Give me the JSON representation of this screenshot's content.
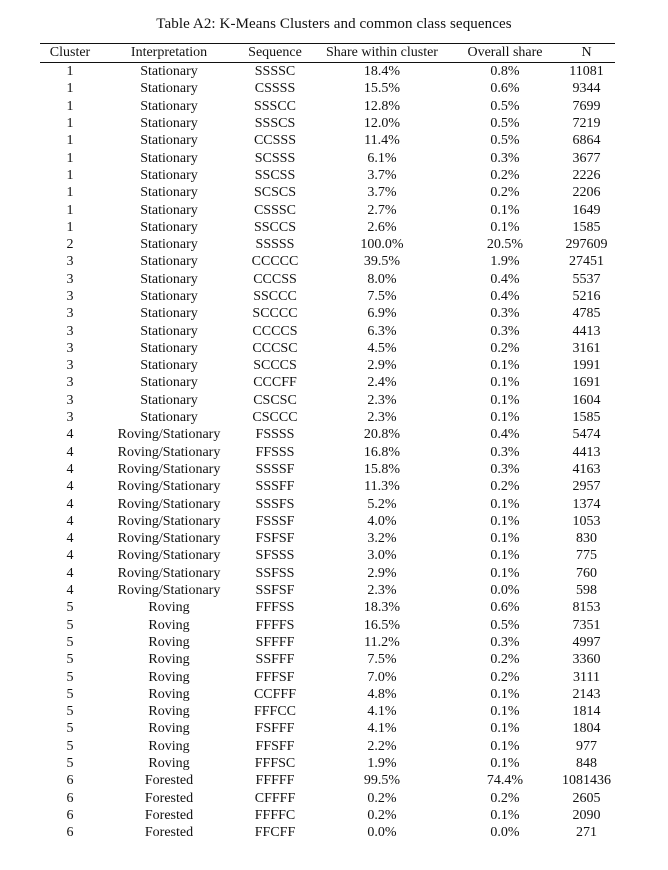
{
  "caption": "Table A2: K-Means Clusters and common class sequences",
  "columns": [
    "Cluster",
    "Interpretation",
    "Sequence",
    "Share within cluster",
    "Overall share",
    "N"
  ],
  "rows": [
    [
      "1",
      "Stationary",
      "SSSSC",
      "18.4%",
      "0.8%",
      "11081"
    ],
    [
      "1",
      "Stationary",
      "CSSSS",
      "15.5%",
      "0.6%",
      "9344"
    ],
    [
      "1",
      "Stationary",
      "SSSCC",
      "12.8%",
      "0.5%",
      "7699"
    ],
    [
      "1",
      "Stationary",
      "SSSCS",
      "12.0%",
      "0.5%",
      "7219"
    ],
    [
      "1",
      "Stationary",
      "CCSSS",
      "11.4%",
      "0.5%",
      "6864"
    ],
    [
      "1",
      "Stationary",
      "SCSSS",
      "6.1%",
      "0.3%",
      "3677"
    ],
    [
      "1",
      "Stationary",
      "SSCSS",
      "3.7%",
      "0.2%",
      "2226"
    ],
    [
      "1",
      "Stationary",
      "SCSCS",
      "3.7%",
      "0.2%",
      "2206"
    ],
    [
      "1",
      "Stationary",
      "CSSSC",
      "2.7%",
      "0.1%",
      "1649"
    ],
    [
      "1",
      "Stationary",
      "SSCCS",
      "2.6%",
      "0.1%",
      "1585"
    ],
    [
      "2",
      "Stationary",
      "SSSSS",
      "100.0%",
      "20.5%",
      "297609"
    ],
    [
      "3",
      "Stationary",
      "CCCCC",
      "39.5%",
      "1.9%",
      "27451"
    ],
    [
      "3",
      "Stationary",
      "CCCSS",
      "8.0%",
      "0.4%",
      "5537"
    ],
    [
      "3",
      "Stationary",
      "SSCCC",
      "7.5%",
      "0.4%",
      "5216"
    ],
    [
      "3",
      "Stationary",
      "SCCCC",
      "6.9%",
      "0.3%",
      "4785"
    ],
    [
      "3",
      "Stationary",
      "CCCCS",
      "6.3%",
      "0.3%",
      "4413"
    ],
    [
      "3",
      "Stationary",
      "CCCSC",
      "4.5%",
      "0.2%",
      "3161"
    ],
    [
      "3",
      "Stationary",
      "SCCCS",
      "2.9%",
      "0.1%",
      "1991"
    ],
    [
      "3",
      "Stationary",
      "CCCFF",
      "2.4%",
      "0.1%",
      "1691"
    ],
    [
      "3",
      "Stationary",
      "CSCSC",
      "2.3%",
      "0.1%",
      "1604"
    ],
    [
      "3",
      "Stationary",
      "CSCCC",
      "2.3%",
      "0.1%",
      "1585"
    ],
    [
      "4",
      "Roving/Stationary",
      "FSSSS",
      "20.8%",
      "0.4%",
      "5474"
    ],
    [
      "4",
      "Roving/Stationary",
      "FFSSS",
      "16.8%",
      "0.3%",
      "4413"
    ],
    [
      "4",
      "Roving/Stationary",
      "SSSSF",
      "15.8%",
      "0.3%",
      "4163"
    ],
    [
      "4",
      "Roving/Stationary",
      "SSSFF",
      "11.3%",
      "0.2%",
      "2957"
    ],
    [
      "4",
      "Roving/Stationary",
      "SSSFS",
      "5.2%",
      "0.1%",
      "1374"
    ],
    [
      "4",
      "Roving/Stationary",
      "FSSSF",
      "4.0%",
      "0.1%",
      "1053"
    ],
    [
      "4",
      "Roving/Stationary",
      "FSFSF",
      "3.2%",
      "0.1%",
      "830"
    ],
    [
      "4",
      "Roving/Stationary",
      "SFSSS",
      "3.0%",
      "0.1%",
      "775"
    ],
    [
      "4",
      "Roving/Stationary",
      "SSFSS",
      "2.9%",
      "0.1%",
      "760"
    ],
    [
      "4",
      "Roving/Stationary",
      "SSFSF",
      "2.3%",
      "0.0%",
      "598"
    ],
    [
      "5",
      "Roving",
      "FFFSS",
      "18.3%",
      "0.6%",
      "8153"
    ],
    [
      "5",
      "Roving",
      "FFFFS",
      "16.5%",
      "0.5%",
      "7351"
    ],
    [
      "5",
      "Roving",
      "SFFFF",
      "11.2%",
      "0.3%",
      "4997"
    ],
    [
      "5",
      "Roving",
      "SSFFF",
      "7.5%",
      "0.2%",
      "3360"
    ],
    [
      "5",
      "Roving",
      "FFFSF",
      "7.0%",
      "0.2%",
      "3111"
    ],
    [
      "5",
      "Roving",
      "CCFFF",
      "4.8%",
      "0.1%",
      "2143"
    ],
    [
      "5",
      "Roving",
      "FFFCC",
      "4.1%",
      "0.1%",
      "1814"
    ],
    [
      "5",
      "Roving",
      "FSFFF",
      "4.1%",
      "0.1%",
      "1804"
    ],
    [
      "5",
      "Roving",
      "FFSFF",
      "2.2%",
      "0.1%",
      "977"
    ],
    [
      "5",
      "Roving",
      "FFFSC",
      "1.9%",
      "0.1%",
      "848"
    ],
    [
      "6",
      "Forested",
      "FFFFF",
      "99.5%",
      "74.4%",
      "1081436"
    ],
    [
      "6",
      "Forested",
      "CFFFF",
      "0.2%",
      "0.2%",
      "2605"
    ],
    [
      "6",
      "Forested",
      "FFFFC",
      "0.2%",
      "0.1%",
      "2090"
    ],
    [
      "6",
      "Forested",
      "FFCFF",
      "0.0%",
      "0.0%",
      "271"
    ]
  ]
}
